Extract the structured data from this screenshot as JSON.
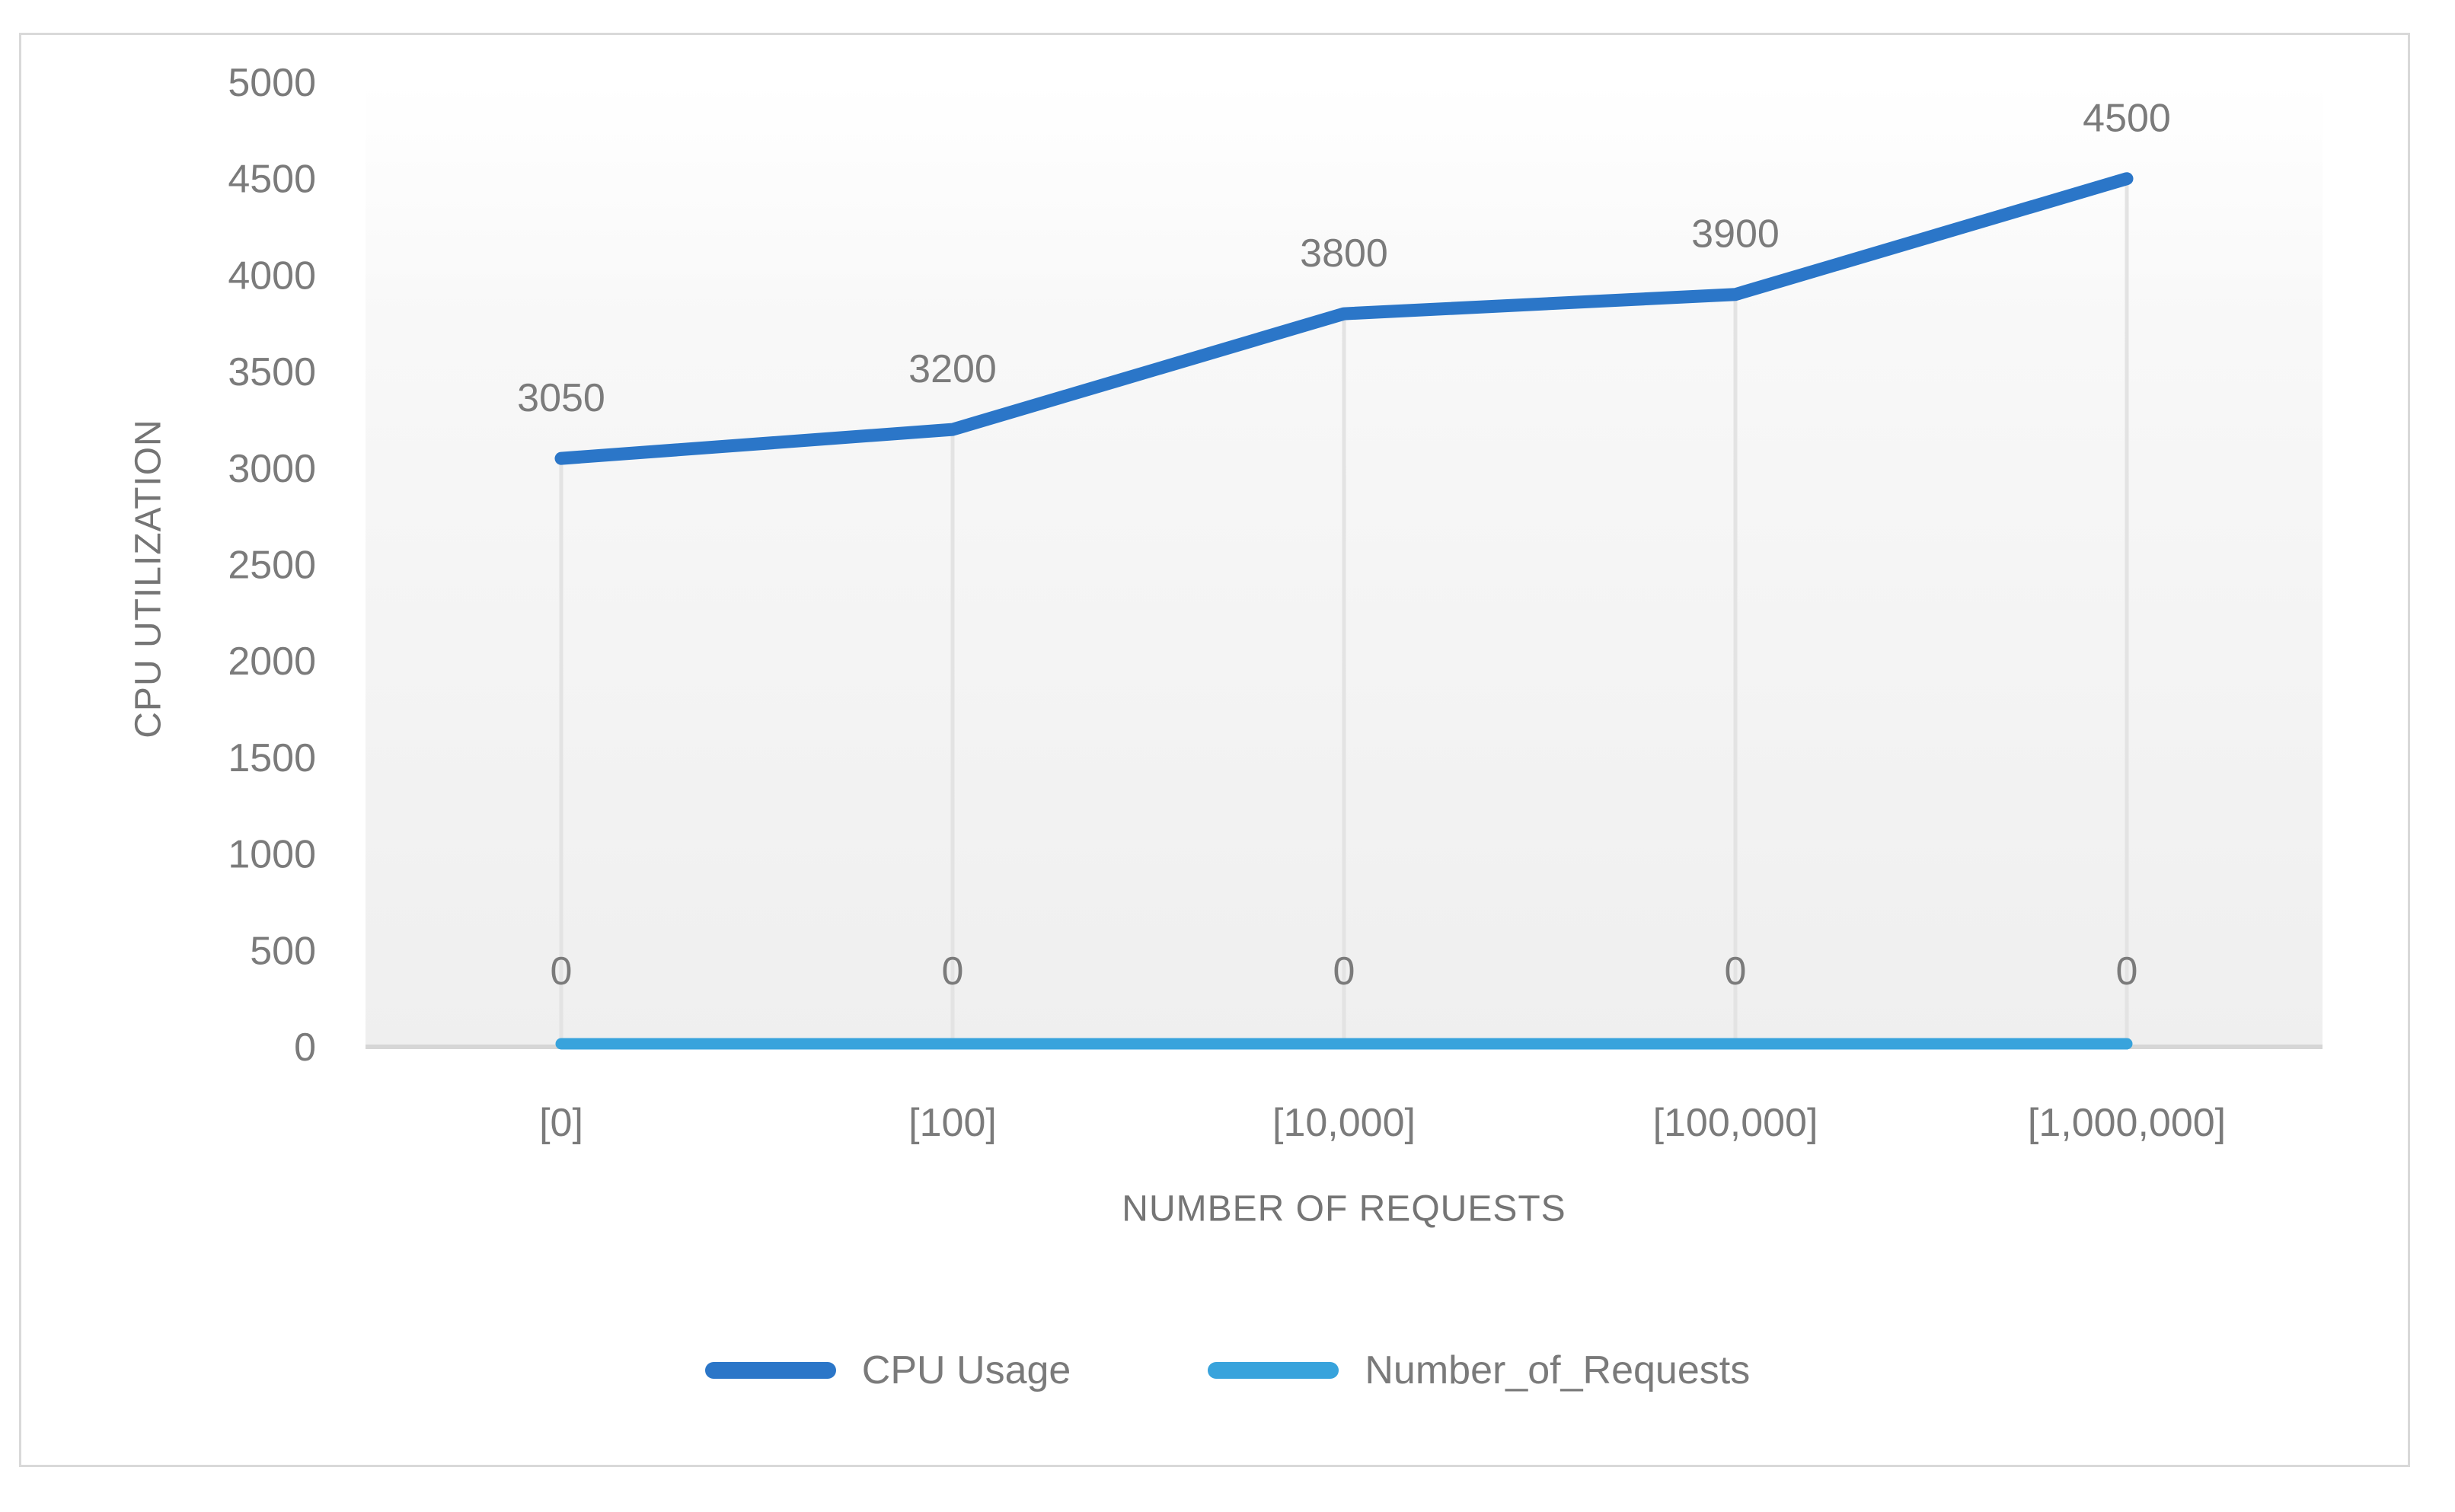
{
  "chart_data": {
    "type": "line",
    "title": "",
    "categories": [
      "[0]",
      "[100]",
      "[10,000]",
      "[100,000]",
      "[1,000,000]"
    ],
    "series": [
      {
        "name": "CPU Usage",
        "color": "#2B76C8",
        "values": [
          3050,
          3200,
          3800,
          3900,
          4500
        ],
        "data_labels": [
          "3050",
          "3200",
          "3800",
          "3900",
          "4500"
        ],
        "label_position": "above"
      },
      {
        "name": "Number_of_Requests",
        "color": "#38A3DC",
        "values": [
          0,
          0,
          0,
          0,
          0
        ],
        "data_labels": [
          "0",
          "0",
          "0",
          "0",
          "0"
        ],
        "label_position": "above"
      }
    ],
    "xlabel": "NUMBER OF REQUESTS",
    "ylabel": "CPU UTILIZATION",
    "ylim": [
      0,
      5000
    ],
    "ytick_step": 500,
    "yticks": [
      "0",
      "500",
      "1000",
      "1500",
      "2000",
      "2500",
      "3000",
      "3500",
      "4000",
      "4500",
      "5000"
    ],
    "legend_position": "bottom",
    "grid": false,
    "droplines": true,
    "style": {
      "text_color": "#7B7B7B",
      "axis_line_color": "#D6D6D6",
      "dropline_color": "#E3E3E3",
      "plot_bg_top": "#FFFFFF",
      "plot_bg_bottom": "#EFEFEF",
      "frame_border_color": "#D9D9D9"
    }
  }
}
